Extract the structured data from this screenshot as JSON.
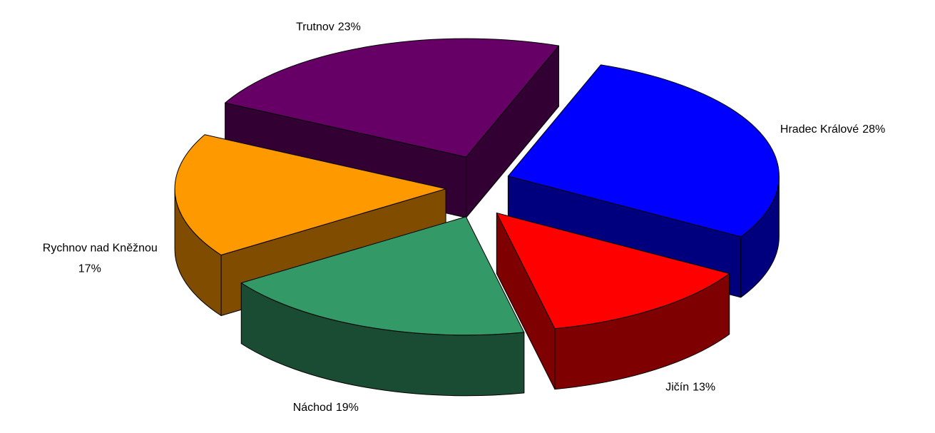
{
  "chart_data": {
    "type": "pie3d",
    "categories": [
      "Hradec Králové",
      "Jičín",
      "Náchod",
      "Rychnov nad Kněžnou",
      "Trutnov"
    ],
    "values": [
      28,
      13,
      19,
      17,
      23
    ],
    "value_labels": [
      "28%",
      "13%",
      "19%",
      "17%",
      "23%"
    ],
    "colors": [
      "#0000ff",
      "#ff0000",
      "#339966",
      "#ff9900",
      "#660066"
    ]
  }
}
